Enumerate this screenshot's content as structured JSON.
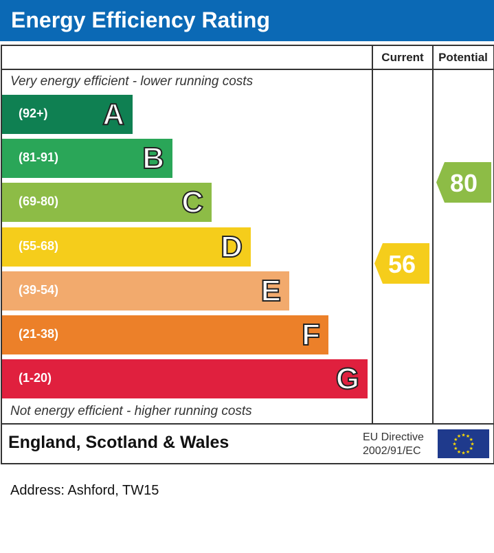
{
  "title": "Energy Efficiency Rating",
  "chart_data": {
    "type": "bar",
    "columns": [
      "Current",
      "Potential"
    ],
    "top_note": "Very energy efficient - lower running costs",
    "bottom_note": "Not energy efficient - higher running costs",
    "bands": [
      {
        "letter": "A",
        "range": "(92+)",
        "color": "#0f8052"
      },
      {
        "letter": "B",
        "range": "(81-91)",
        "color": "#2aa658"
      },
      {
        "letter": "C",
        "range": "(69-80)",
        "color": "#8dbc46"
      },
      {
        "letter": "D",
        "range": "(55-68)",
        "color": "#f5cd1b"
      },
      {
        "letter": "E",
        "range": "(39-54)",
        "color": "#f2aa6d"
      },
      {
        "letter": "F",
        "range": "(21-38)",
        "color": "#ec8029"
      },
      {
        "letter": "G",
        "range": "(1-20)",
        "color": "#e0203e"
      }
    ],
    "current": {
      "value": "56",
      "band": "D",
      "color": "#f5cd1b"
    },
    "potential": {
      "value": "80",
      "band": "C",
      "color": "#8dbc46"
    }
  },
  "footer": {
    "region": "England, Scotland & Wales",
    "directive_line1": "EU Directive",
    "directive_line2": "2002/91/EC"
  },
  "address": "Address: Ashford, TW15"
}
